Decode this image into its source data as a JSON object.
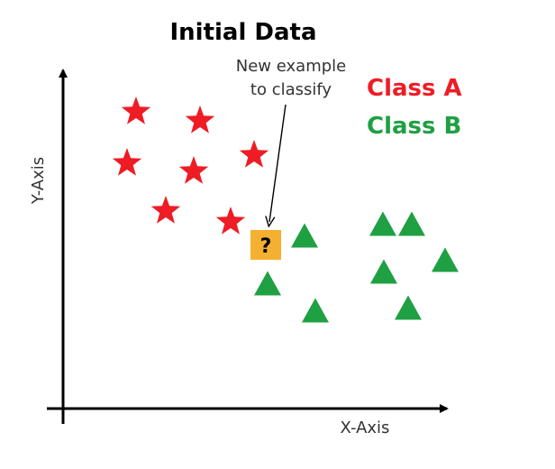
{
  "chart_data": {
    "type": "scatter",
    "title": "Initial Data",
    "xlabel": "X-Axis",
    "ylabel": "Y-Axis",
    "classes": [
      {
        "label": "Class A",
        "marker": "star",
        "color": "#ee1c25"
      },
      {
        "label": "Class B",
        "marker": "triangle",
        "color": "#1fa043"
      }
    ],
    "unknown": {
      "glyph": "?",
      "color": "#f5b031"
    },
    "annotation": [
      "New example",
      "to classify"
    ]
  }
}
